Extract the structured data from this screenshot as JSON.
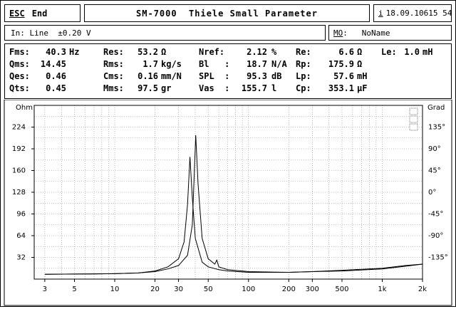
{
  "header": {
    "esc_key": "ESC",
    "esc_label": "End",
    "title": "SM-7000  Thiele Small Parameter",
    "info_key": "i",
    "info_text": "18.09.10615 54"
  },
  "input_bar": {
    "label": "In: Line  ±0.20 V"
  },
  "memory_bar": {
    "key": "MO",
    "sep": ":",
    "name": "NoName"
  },
  "params": {
    "col1": [
      {
        "name": "Fms:",
        "value": "40.3",
        "unit": "Hz"
      },
      {
        "name": "Qms:",
        "value": "14.45",
        "unit": ""
      },
      {
        "name": "Qes:",
        "value": "0.46",
        "unit": ""
      },
      {
        "name": "Qts:",
        "value": "0.45",
        "unit": ""
      }
    ],
    "col2": [
      {
        "name": "Res:",
        "value": "53.2",
        "unit": "Ω"
      },
      {
        "name": "Rms:",
        "value": "1.7",
        "unit": "kg/s"
      },
      {
        "name": "Cms:",
        "value": "0.16",
        "unit": "mm/N"
      },
      {
        "name": "Mms:",
        "value": "97.5",
        "unit": "gr"
      }
    ],
    "col3": [
      {
        "name": "Nref:",
        "value": "2.12",
        "unit": "%"
      },
      {
        "name": "Bl   :",
        "value": "18.7",
        "unit": "N/A"
      },
      {
        "name": "SPL  :",
        "value": "95.3",
        "unit": "dB"
      },
      {
        "name": "Vas  :",
        "value": "155.7",
        "unit": "l"
      }
    ],
    "col4": [
      {
        "name": "Re:",
        "value": "6.6",
        "unit": "Ω"
      },
      {
        "name": "Rp:",
        "value": "175.9",
        "unit": "Ω"
      },
      {
        "name": "Lp:",
        "value": "57.6",
        "unit": "mH"
      },
      {
        "name": "Cp:",
        "value": "353.1",
        "unit": "µF"
      }
    ],
    "extra": {
      "name": "Le:",
      "value": "1.0",
      "unit": "mH"
    }
  },
  "chart_data": {
    "type": "line",
    "x_scale": "log",
    "xlim": [
      2.5,
      2000
    ],
    "x_ticks": [
      3,
      5,
      10,
      20,
      30,
      50,
      100,
      200,
      300,
      500,
      1000,
      2000
    ],
    "x_tick_labels": [
      "3",
      "5",
      "10",
      "20",
      "30",
      "50",
      "100",
      "200",
      "300",
      "500",
      "1k",
      "2k"
    ],
    "ylabel_left": "Ohm",
    "ylim_left": [
      0,
      256
    ],
    "y_ticks_left": [
      32,
      64,
      96,
      128,
      160,
      192,
      224
    ],
    "ylabel_right": "Grad",
    "ylim_right": [
      -180,
      180
    ],
    "y_ticks_right_labels": [
      "135°",
      "90°",
      "45°",
      "0°",
      "-45°",
      "-90°",
      "-135°"
    ],
    "y_ticks_right": [
      135,
      90,
      45,
      0,
      -45,
      -90,
      -135
    ],
    "grid": true,
    "series": [
      {
        "values_xy": [
          [
            3,
            7
          ],
          [
            5,
            7.5
          ],
          [
            10,
            8
          ],
          [
            15,
            9
          ],
          [
            20,
            12
          ],
          [
            25,
            18
          ],
          [
            30,
            30
          ],
          [
            33,
            55
          ],
          [
            35,
            110
          ],
          [
            36.5,
            180
          ],
          [
            38,
            120
          ],
          [
            40,
            60
          ],
          [
            45,
            25
          ],
          [
            50,
            18
          ],
          [
            60,
            14
          ],
          [
            70,
            12
          ],
          [
            100,
            10
          ],
          [
            200,
            10
          ],
          [
            300,
            11
          ],
          [
            500,
            12
          ],
          [
            1000,
            15
          ],
          [
            1500,
            19
          ],
          [
            2000,
            22
          ]
        ]
      },
      {
        "values_xy": [
          [
            3,
            7
          ],
          [
            5,
            7.5
          ],
          [
            10,
            8
          ],
          [
            15,
            9
          ],
          [
            20,
            11
          ],
          [
            25,
            15
          ],
          [
            30,
            20
          ],
          [
            35,
            35
          ],
          [
            38,
            80
          ],
          [
            40.3,
            212
          ],
          [
            42,
            140
          ],
          [
            45,
            60
          ],
          [
            50,
            30
          ],
          [
            56,
            22
          ],
          [
            58,
            28
          ],
          [
            60,
            18
          ],
          [
            70,
            14
          ],
          [
            100,
            11
          ],
          [
            200,
            10
          ],
          [
            300,
            11
          ],
          [
            500,
            13
          ],
          [
            1000,
            16
          ],
          [
            1500,
            20
          ],
          [
            2000,
            22
          ]
        ]
      }
    ]
  }
}
